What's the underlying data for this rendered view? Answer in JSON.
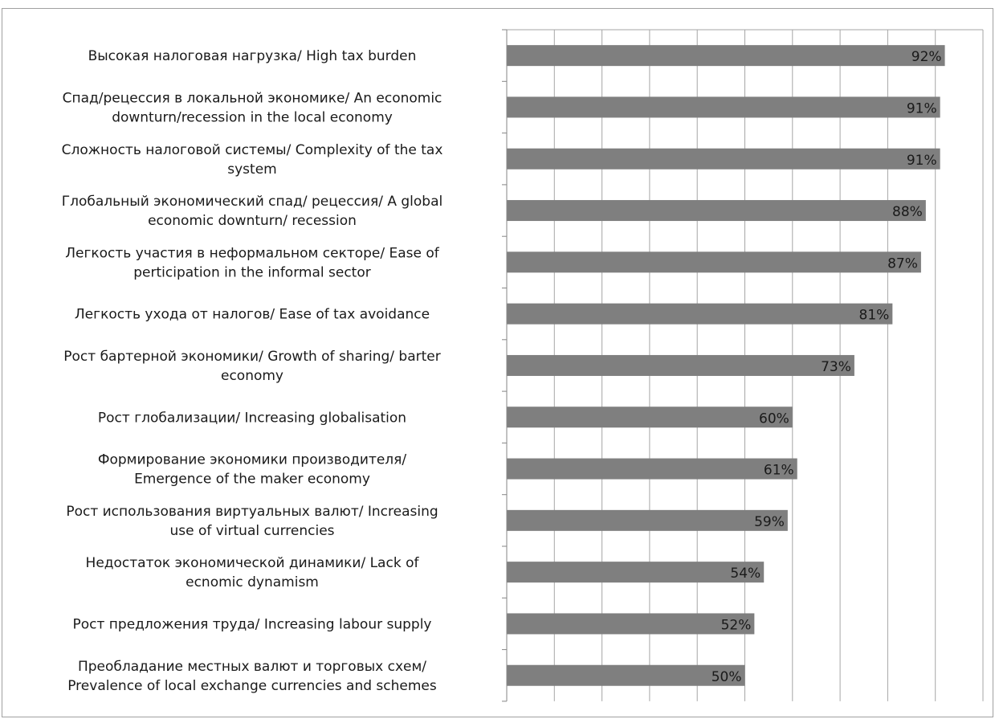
{
  "chart_data": {
    "type": "bar",
    "orientation": "horizontal",
    "categories": [
      [
        "Высокая налоговая нагрузка/ High tax burden"
      ],
      [
        "Спад/рецессия в локальной экономике/ An economic",
        "downturn/recession in the local economy"
      ],
      [
        "Сложность налоговой системы/ Complexity of the tax",
        "system"
      ],
      [
        "Глобальный экономический спад/ рецессия/ A global",
        "economic downturn/ recession"
      ],
      [
        "Легкость участия в неформальном секторе/ Ease of",
        "perticipation in the informal sector"
      ],
      [
        "Легкость ухода от налогов/ Ease of tax avoidance"
      ],
      [
        "Рост бартерной экономики/ Growth of sharing/ barter",
        "economy"
      ],
      [
        "Рост глобализации/ Increasing globalisation"
      ],
      [
        "Формирование экономики производителя/",
        "Emergence of the maker economy"
      ],
      [
        "Рост использования виртуальных валют/ Increasing",
        "use of virtual currencies"
      ],
      [
        "Недостаток экономической динамики/ Lack of",
        "ecnomic dynamism"
      ],
      [
        "Рост предложения труда/ Increasing labour supply"
      ],
      [
        "Преобладание местных валют и торговых схем/",
        "Prevalence of local exchange currencies and schemes"
      ]
    ],
    "values": [
      92,
      91,
      91,
      88,
      87,
      81,
      73,
      60,
      61,
      59,
      54,
      52,
      50
    ],
    "data_labels": [
      "92%",
      "91%",
      "91%",
      "88%",
      "87%",
      "81%",
      "73%",
      "60%",
      "61%",
      "59%",
      "54%",
      "52%",
      "50%"
    ],
    "xlim": [
      0,
      100
    ],
    "grid": true,
    "legend": "none",
    "bar_color": "#7f7f7f",
    "grid_color": "#a6a6a6",
    "title": "",
    "xlabel": "",
    "ylabel": ""
  }
}
